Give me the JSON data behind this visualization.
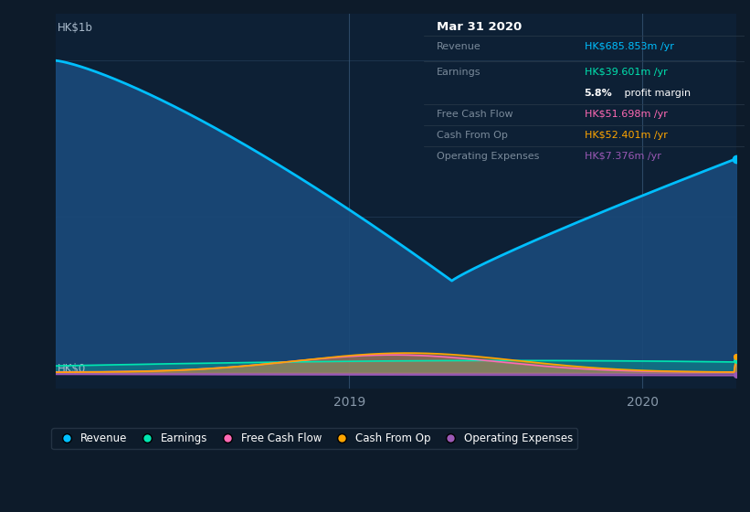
{
  "bg_color": "#0d1b2a",
  "plot_bg_color": "#0d2035",
  "ylabel_1b": "HK$1b",
  "ylabel_0": "HK$0",
  "ylim": [
    -50,
    1150
  ],
  "revenue_color": "#00bfff",
  "earnings_color": "#00e5b0",
  "fcf_color": "#ff69b4",
  "cashop_color": "#ffa500",
  "opex_color": "#9b59b6",
  "revenue_fill_color": "#1a4a7a",
  "info_box": {
    "date": "Mar 31 2020",
    "revenue_label": "Revenue",
    "revenue_value": "HK$685.853m",
    "revenue_color": "#00bfff",
    "earnings_label": "Earnings",
    "earnings_value": "HK$39.601m",
    "earnings_color": "#00e5b0",
    "margin_bold": "5.8%",
    "margin_rest": " profit margin",
    "fcf_label": "Free Cash Flow",
    "fcf_value": "HK$51.698m",
    "fcf_color": "#ff69b4",
    "cashop_label": "Cash From Op",
    "cashop_value": "HK$52.401m",
    "cashop_color": "#ffa500",
    "opex_label": "Operating Expenses",
    "opex_value": "HK$7.376m",
    "opex_color": "#9b59b6"
  },
  "legend": [
    {
      "label": "Revenue",
      "color": "#00bfff"
    },
    {
      "label": "Earnings",
      "color": "#00e5b0"
    },
    {
      "label": "Free Cash Flow",
      "color": "#ff69b4"
    },
    {
      "label": "Cash From Op",
      "color": "#ffa500"
    },
    {
      "label": "Operating Expenses",
      "color": "#9b59b6"
    }
  ]
}
